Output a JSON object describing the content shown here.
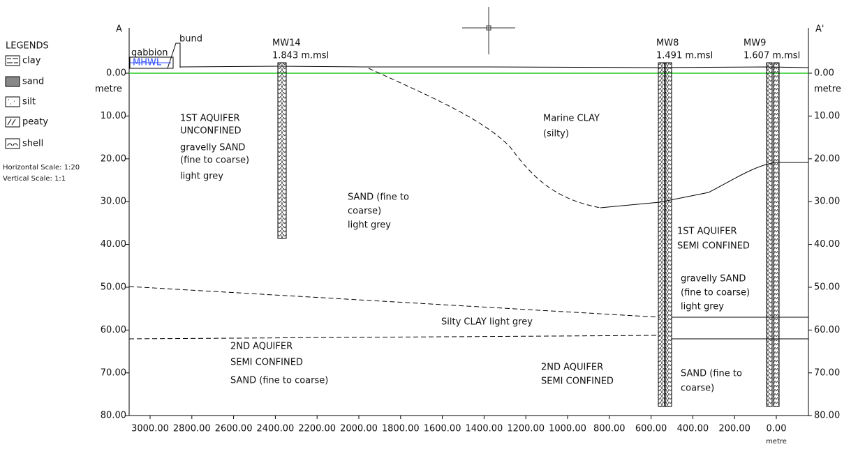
{
  "section": {
    "left_end": "A",
    "right_end": "A'"
  },
  "legend": {
    "title": "LEGENDS",
    "items": [
      "clay",
      "sand",
      "silt",
      "peaty",
      "shell"
    ],
    "horizontal_scale": "Horizontal Scale: 1:20",
    "vertical_scale": "Vertical Scale: 1:1"
  },
  "depth_axis": {
    "ticks": [
      "0.00",
      "10.00",
      "20.00",
      "30.00",
      "40.00",
      "50.00",
      "60.00",
      "70.00",
      "80.00"
    ],
    "unit": "metre"
  },
  "distance_axis": {
    "ticks": [
      "3000.00",
      "2800.00",
      "2600.00",
      "2400.00",
      "2200.00",
      "2000.00",
      "1800.00",
      "1600.00",
      "1400.00",
      "1200.00",
      "1000.00",
      "800.00",
      "600.00",
      "400.00",
      "200.00",
      "0.00"
    ],
    "unit": "metre"
  },
  "surface_labels": {
    "gabbion": "gabbion",
    "bund": "bund",
    "mhwl": "MHWL"
  },
  "wells": [
    {
      "name": "MW14",
      "level": "1.843 m.msl"
    },
    {
      "name": "MW8",
      "level": "1.491 m.msl"
    },
    {
      "name": "MW9",
      "level": "1.607 m.msl"
    }
  ],
  "layer_labels": [
    [
      "1ST AQUIFER",
      "UNCONFINED",
      "gravelly SAND",
      "(fine to coarse)",
      "light grey"
    ],
    [
      "SAND (fine to",
      "coarse)",
      "light grey"
    ],
    [
      "Marine CLAY",
      "(silty)"
    ],
    [
      "1ST AQUIFER",
      "SEMI CONFINED"
    ],
    [
      "gravelly SAND",
      "(fine to coarse)",
      "light grey"
    ],
    [
      "Silty CLAY light grey"
    ],
    [
      "2ND AQUIFER",
      "SEMI CONFINED",
      "SAND (fine to coarse)"
    ],
    [
      "2ND AQUIFER",
      "SEMI CONFINED"
    ],
    [
      "SAND (fine to",
      "coarse)"
    ]
  ]
}
